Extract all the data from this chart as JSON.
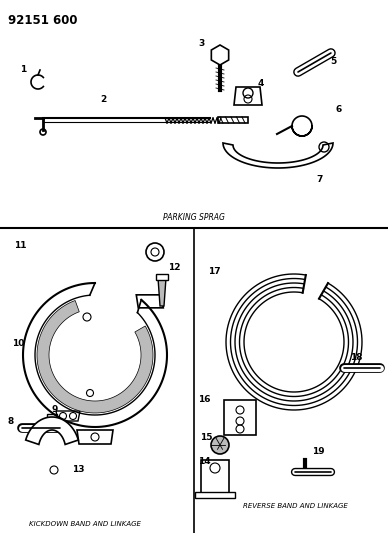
{
  "title": "92151 600",
  "bg_color": "#ffffff",
  "lc": "#000000",
  "gray": "#888888",
  "lgray": "#bbbbbb",
  "labels": {
    "parking_sprag": "PARKING SPRAG",
    "kickdown": "KICKDOWN BAND AND LINKAGE",
    "reverse": "REVERSE BAND AND LINKAGE"
  }
}
